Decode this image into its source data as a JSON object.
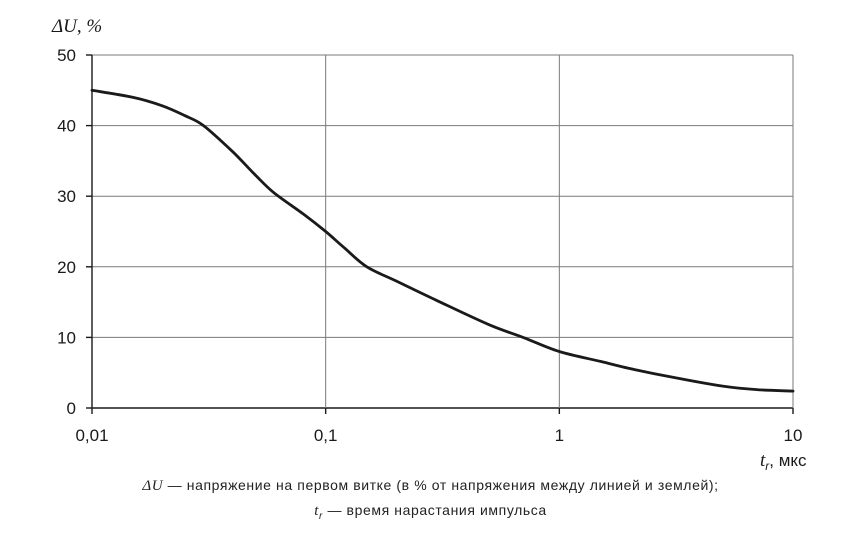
{
  "chart_data": {
    "type": "line",
    "x_scale": "log",
    "xlim": [
      0.01,
      10
    ],
    "ylim": [
      0,
      50
    ],
    "grid": true,
    "y_ticks": [
      {
        "value": 0,
        "label": "0"
      },
      {
        "value": 10,
        "label": "10"
      },
      {
        "value": 20,
        "label": "20"
      },
      {
        "value": 30,
        "label": "30"
      },
      {
        "value": 40,
        "label": "40"
      },
      {
        "value": 50,
        "label": "50"
      }
    ],
    "x_ticks": [
      {
        "value": 0.01,
        "label": "0,01"
      },
      {
        "value": 0.1,
        "label": "0,1"
      },
      {
        "value": 1,
        "label": "1"
      },
      {
        "value": 10,
        "label": "10"
      }
    ],
    "ylabel": "ΔU, %",
    "xlabel_symbol": "t",
    "xlabel_subscript": "r",
    "xlabel_unit": ", мкс",
    "series": [
      {
        "points": [
          {
            "x": 0.01,
            "y": 45
          },
          {
            "x": 0.015,
            "y": 44
          },
          {
            "x": 0.02,
            "y": 42.8
          },
          {
            "x": 0.025,
            "y": 41.4
          },
          {
            "x": 0.03,
            "y": 40
          },
          {
            "x": 0.04,
            "y": 36.3
          },
          {
            "x": 0.05,
            "y": 33
          },
          {
            "x": 0.06,
            "y": 30.5
          },
          {
            "x": 0.08,
            "y": 27.5
          },
          {
            "x": 0.1,
            "y": 25
          },
          {
            "x": 0.12,
            "y": 22.7
          },
          {
            "x": 0.15,
            "y": 20
          },
          {
            "x": 0.2,
            "y": 18
          },
          {
            "x": 0.3,
            "y": 15.2
          },
          {
            "x": 0.5,
            "y": 11.8
          },
          {
            "x": 0.7,
            "y": 10
          },
          {
            "x": 1,
            "y": 8
          },
          {
            "x": 1.5,
            "y": 6.6
          },
          {
            "x": 2,
            "y": 5.6
          },
          {
            "x": 3,
            "y": 4.4
          },
          {
            "x": 5,
            "y": 3.1
          },
          {
            "x": 7,
            "y": 2.6
          },
          {
            "x": 10,
            "y": 2.4
          }
        ]
      }
    ]
  },
  "caption": {
    "line1_symbol": "ΔU",
    "line1_text": " — напряжение на первом витке (в % от напряжения между линией и землей);",
    "line2_symbol": "t",
    "line2_subscript": "r",
    "line2_text": " — время нарастания импульса"
  }
}
